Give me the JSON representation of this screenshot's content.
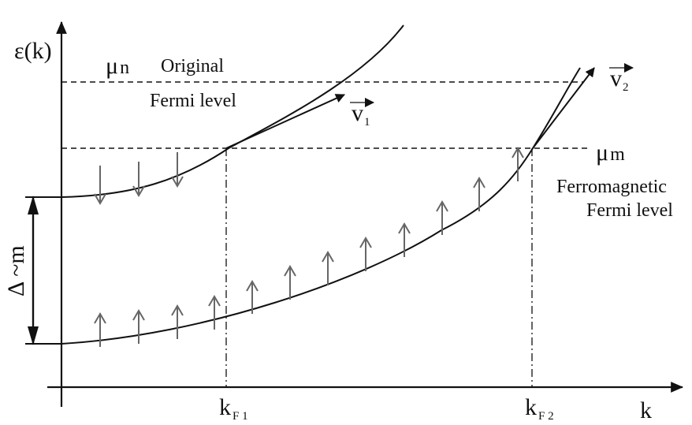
{
  "figure": {
    "y_axis_label": "ε(k)",
    "x_axis_label": "k",
    "mu_n": {
      "symbol": "μ",
      "subscript": "n"
    },
    "mu_m": {
      "symbol": "μ",
      "subscript": "m"
    },
    "original_fermi": {
      "line1": "Original",
      "line2": "Fermi level"
    },
    "ferro_fermi": {
      "line1": "Ferromagnetic",
      "line2": "Fermi level"
    },
    "v1": {
      "symbol": "v",
      "subscript": "1"
    },
    "v2": {
      "symbol": "v",
      "subscript": "2"
    },
    "kF1": {
      "symbol": "k",
      "subscript": "F 1"
    },
    "kF2": {
      "symbol": "k",
      "subscript": "F 2"
    },
    "gap": "Δ ~m",
    "spin_down_count": 3,
    "spin_up_count": 12,
    "colors": {
      "line": "#111111",
      "spin": "#666666"
    }
  }
}
